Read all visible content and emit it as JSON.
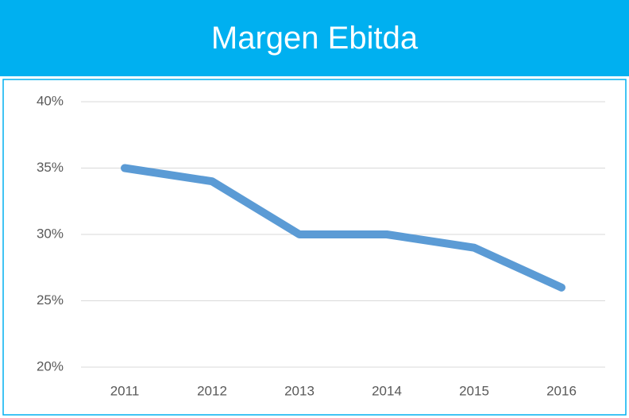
{
  "chart_data": {
    "type": "line",
    "title": "Margen Ebitda",
    "categories": [
      "2011",
      "2012",
      "2013",
      "2014",
      "2015",
      "2016"
    ],
    "values": [
      35,
      34,
      30,
      30,
      29,
      26
    ],
    "color": "#5b9bd5",
    "ylim": [
      20,
      40
    ],
    "yticks": [
      {
        "value": 20,
        "label": "20%"
      },
      {
        "value": 25,
        "label": "25%"
      },
      {
        "value": 30,
        "label": "30%"
      },
      {
        "value": 35,
        "label": "35%"
      },
      {
        "value": 40,
        "label": "40%"
      }
    ],
    "grid": true
  }
}
